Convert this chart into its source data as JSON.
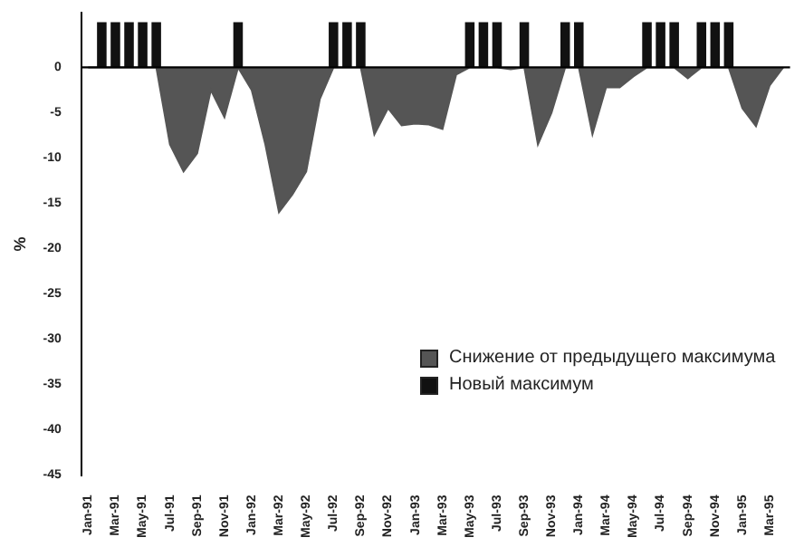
{
  "chart_data": {
    "type": "area",
    "ylabel": "%",
    "legend": "bottom right",
    "grid": false,
    "categories": [
      "Jan-91",
      null,
      "Mar-91",
      null,
      "May-91",
      null,
      "Jul-91",
      null,
      "Sep-91",
      null,
      "Nov-91",
      null,
      "Jan-92",
      null,
      "Mar-92",
      null,
      "May-92",
      null,
      "Jul-92",
      null,
      "Sep-92",
      null,
      "Nov-92",
      null,
      "Jan-93",
      null,
      "Mar-93",
      null,
      "May-93",
      null,
      "Jul-93",
      null,
      "Sep-93",
      null,
      "Nov-93",
      null,
      "Jan-94",
      null,
      "Mar-94",
      null,
      "May-94",
      null,
      "Jul-94",
      null,
      "Sep-94",
      null,
      "Nov-94",
      null,
      "Jan-95",
      null,
      "Mar-95",
      null
    ],
    "ylim": [
      -45,
      6
    ],
    "ref_lines": [
      {
        "axis": "y",
        "value": 0,
        "color": "#000000"
      }
    ],
    "yticks": [
      0,
      -5,
      -10,
      -15,
      -20,
      -25,
      -30,
      -35,
      -40,
      -45
    ],
    "series": [
      {
        "name": "Снижение от предыдущего максимума",
        "color": "#555555",
        "values": [
          0,
          0,
          0,
          0,
          0,
          0,
          -8.5,
          -11.5,
          -9.5,
          -2.5,
          -5.5,
          0,
          -2.5,
          -8.5,
          -16,
          -14,
          -11.5,
          -3.5,
          0,
          0,
          0,
          -7.4,
          -4.5,
          -6.4,
          -6.2,
          -6.3,
          -6.8,
          -0.8,
          0,
          0,
          0,
          -0.2,
          0,
          -8.5,
          -5,
          0,
          0,
          -7.4,
          -2.2,
          -2.2,
          -1,
          0,
          0,
          0,
          -1.2,
          0,
          0,
          0,
          -4.5,
          -6.5,
          -2,
          0
        ]
      },
      {
        "name": "Новый максимум",
        "type": "bar",
        "color": "#111111",
        "values": [
          null,
          5,
          5,
          5,
          5,
          5,
          null,
          null,
          null,
          null,
          null,
          5,
          null,
          null,
          null,
          null,
          null,
          null,
          5,
          5,
          5,
          null,
          null,
          null,
          null,
          null,
          null,
          null,
          5,
          5,
          5,
          null,
          5,
          null,
          null,
          5,
          5,
          null,
          null,
          null,
          null,
          5,
          5,
          5,
          null,
          5,
          5,
          5,
          null,
          null,
          null,
          null
        ]
      }
    ]
  }
}
